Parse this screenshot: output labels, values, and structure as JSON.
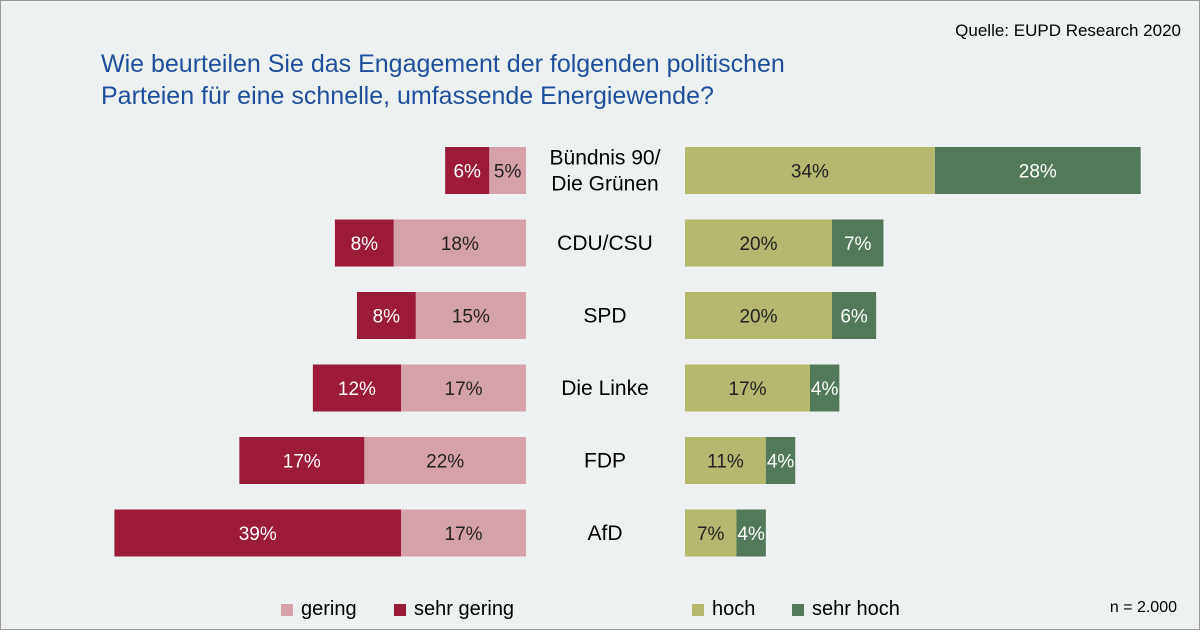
{
  "source": "Quelle: EUPD Research 2020",
  "title_lines": [
    "Wie beurteilen Sie das Engagement der folgenden politischen",
    "Parteien für eine schnelle, umfassende Energiewende?"
  ],
  "note": "n = 2.000",
  "colors": {
    "gering": "#d5a2a9",
    "sehr_gering": "#9b1b39",
    "hoch": "#b5b86e",
    "sehr_hoch": "#53785a",
    "title": "#1f4e9c",
    "background": "#eef1f1"
  },
  "legend": [
    {
      "label": "gering",
      "color": "#d5a2a9"
    },
    {
      "label": "sehr gering",
      "color": "#9b1b39"
    },
    {
      "label": "hoch",
      "color": "#b5b86e"
    },
    {
      "label": "sehr hoch",
      "color": "#53785a"
    }
  ],
  "chart_data": {
    "type": "bar",
    "orientation": "horizontal-diverging",
    "categories": [
      [
        "Bündnis 90/",
        "Die Grünen"
      ],
      [
        "CDU/CSU"
      ],
      [
        "SPD"
      ],
      [
        "Die Linke"
      ],
      [
        "FDP"
      ],
      [
        "AfD"
      ]
    ],
    "series": [
      {
        "name": "gering",
        "side": "left",
        "values": [
          5,
          18,
          15,
          17,
          22,
          17
        ],
        "labels": [
          "5%",
          "18%",
          "15%",
          "17%",
          "22%",
          "17%"
        ]
      },
      {
        "name": "sehr gering",
        "side": "left",
        "values": [
          6,
          8,
          8,
          12,
          17,
          39
        ],
        "labels": [
          "6%",
          "8%",
          "8%",
          "12%",
          "17%",
          "39%"
        ]
      },
      {
        "name": "hoch",
        "side": "right",
        "values": [
          34,
          20,
          20,
          17,
          11,
          7
        ],
        "labels": [
          "34%",
          "20%",
          "20%",
          "17%",
          "11%",
          "7%"
        ]
      },
      {
        "name": "sehr hoch",
        "side": "right",
        "values": [
          28,
          7,
          6,
          4,
          4,
          4
        ],
        "labels": [
          "28%",
          "7%",
          "6%",
          "4%",
          "4%",
          "4%"
        ]
      }
    ]
  }
}
